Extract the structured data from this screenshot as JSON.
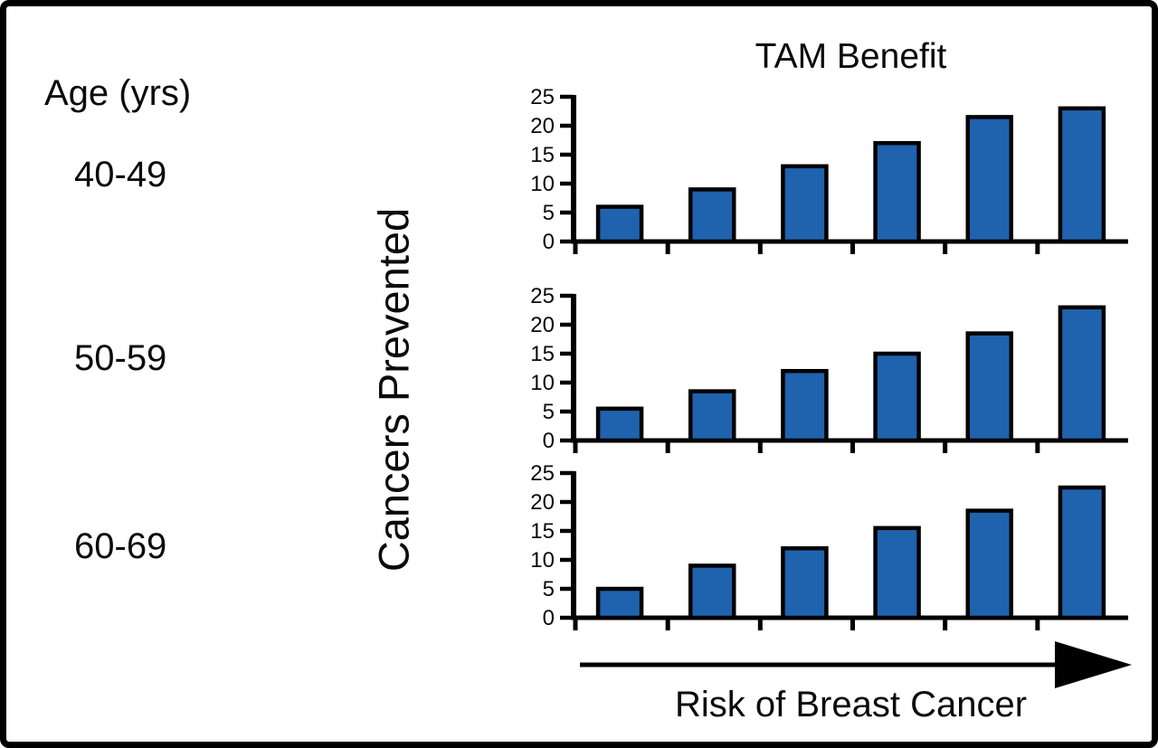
{
  "figure": {
    "title": "TAM Benefit",
    "age_column": {
      "header": "Age (yrs)",
      "groups": [
        "40-49",
        "50-59",
        "60-69"
      ]
    },
    "y_axis_label": "Cancers Prevented",
    "x_axis_label": "Risk of Breast Cancer",
    "colors": {
      "bar_fill": "#1F62AE",
      "bar_stroke": "#000000",
      "axis": "#000000",
      "text": "#0b0b0b",
      "background": "#ffffff"
    }
  },
  "chart_data": [
    {
      "type": "bar",
      "title": "TAM Benefit",
      "group": "40-49",
      "categories": [
        "",
        "",
        "",
        "",
        "",
        ""
      ],
      "values": [
        6,
        9,
        13,
        17,
        21.5,
        23
      ],
      "xlabel": "Risk of Breast Cancer",
      "ylabel": "Cancers Prevented",
      "ylim": [
        0,
        25
      ],
      "yticks": [
        0,
        5,
        10,
        15,
        20,
        25
      ],
      "grid": false,
      "x_tick_labels_visible": false,
      "note": "x categories are unlabeled; risk increases left to right"
    },
    {
      "type": "bar",
      "title": "",
      "group": "50-59",
      "categories": [
        "",
        "",
        "",
        "",
        "",
        ""
      ],
      "values": [
        5.5,
        8.5,
        12,
        15,
        18.5,
        23
      ],
      "xlabel": "Risk of Breast Cancer",
      "ylabel": "Cancers Prevented",
      "ylim": [
        0,
        25
      ],
      "yticks": [
        0,
        5,
        10,
        15,
        20,
        25
      ],
      "grid": false,
      "x_tick_labels_visible": false,
      "note": "x categories are unlabeled; risk increases left to right"
    },
    {
      "type": "bar",
      "title": "",
      "group": "60-69",
      "categories": [
        "",
        "",
        "",
        "",
        "",
        ""
      ],
      "values": [
        5,
        9,
        12,
        15.5,
        18.5,
        22.5
      ],
      "xlabel": "Risk of Breast Cancer",
      "ylabel": "Cancers Prevented",
      "ylim": [
        0,
        25
      ],
      "yticks": [
        0,
        5,
        10,
        15,
        20,
        25
      ],
      "grid": false,
      "x_tick_labels_visible": false,
      "note": "x categories are unlabeled; risk increases left to right"
    }
  ]
}
